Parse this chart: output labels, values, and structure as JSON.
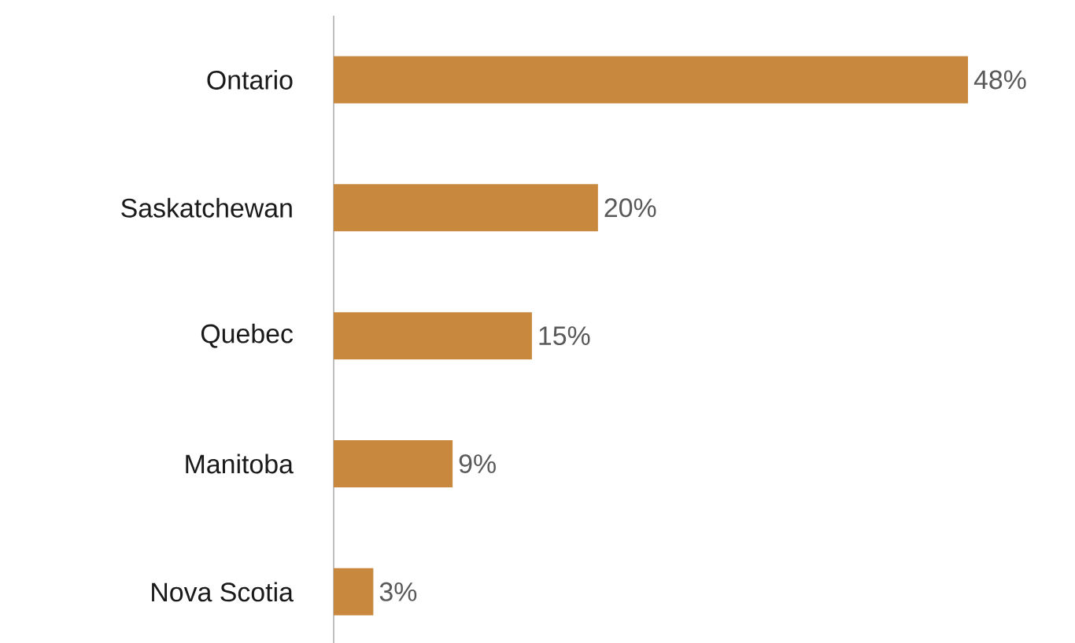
{
  "chart_data": {
    "type": "bar",
    "orientation": "horizontal",
    "categories": [
      "Ontario",
      "Saskatchewan",
      "Quebec",
      "Manitoba",
      "Nova Scotia"
    ],
    "values": [
      48,
      20,
      15,
      9,
      3
    ],
    "value_labels": [
      "48%",
      "20%",
      "15%",
      "9%",
      "3%"
    ],
    "color": "#c8893f"
  }
}
